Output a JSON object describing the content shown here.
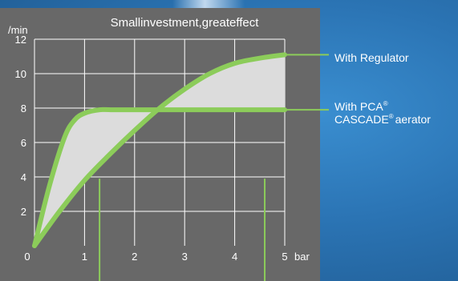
{
  "colors": {
    "panel": "#686868",
    "curve": "#8ccc5a",
    "fill": "#dcdcdc",
    "grid": "#ffffff",
    "background": "#2b74b4"
  },
  "chart_data": {
    "type": "line",
    "title": "Smallinvestment,greateffect",
    "ylabel": "/min",
    "xlabel": "bar",
    "xlim": [
      0,
      5
    ],
    "ylim": [
      0,
      12
    ],
    "x_ticks": [
      "0",
      "1",
      "2",
      "3",
      "4",
      "5"
    ],
    "y_ticks": [
      "2",
      "4",
      "6",
      "8",
      "10",
      "12"
    ],
    "grid": true,
    "series": [
      {
        "name": "With Regulator",
        "x": [
          0,
          0.5,
          1,
          1.5,
          2,
          2.5,
          3,
          3.5,
          4,
          4.5,
          5
        ],
        "y": [
          0,
          2.0,
          3.8,
          5.3,
          6.7,
          8.0,
          9.1,
          10.0,
          10.6,
          10.9,
          11.1
        ]
      },
      {
        "name": "With PCA® CASCADE® aerator",
        "x": [
          0,
          0.3,
          0.6,
          0.8,
          1.0,
          1.3,
          1.6,
          2,
          3,
          4,
          5
        ],
        "y": [
          0,
          3.5,
          6.3,
          7.3,
          7.7,
          7.9,
          7.9,
          7.9,
          7.9,
          7.9,
          7.9
        ]
      }
    ],
    "legend": {
      "regulator": "With Regulator",
      "pca_line1": "With PCA",
      "pca_line2": "CASCADE",
      "pca_line2_suffix": "aerator",
      "registered": "®"
    },
    "marker_x": [
      1.3,
      4.6
    ]
  }
}
